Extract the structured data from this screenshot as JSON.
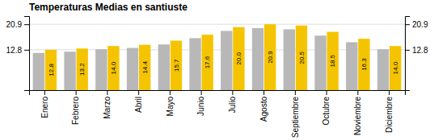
{
  "chart_data": {
    "type": "bar",
    "title": "Temperaturas Medias en santiuste",
    "categories": [
      "Enero",
      "Febrero",
      "Marzo",
      "Abril",
      "Mayo",
      "Junio",
      "Julio",
      "Agosto",
      "Septiembre",
      "Octubre",
      "Noviembre",
      "Diciembre"
    ],
    "series": [
      {
        "color": "#B8B8B8",
        "values": [
          11.8,
          12.2,
          13.0,
          13.4,
          14.5,
          16.5,
          18.8,
          19.7,
          19.3,
          17.3,
          15.2,
          13.0
        ]
      },
      {
        "color": "#F5C400",
        "values": [
          12.8,
          13.2,
          14.0,
          14.4,
          15.7,
          17.6,
          20.0,
          20.9,
          20.5,
          18.5,
          16.3,
          14.0
        ],
        "data_labels": true,
        "value_labels": [
          "12.8",
          "13.2",
          "14.0",
          "14.4",
          "15.7",
          "17.6",
          "20.0",
          "20.9",
          "20.5",
          "18.5",
          "16.3",
          "14.0"
        ]
      }
    ],
    "ylim": [
      0,
      23.5
    ],
    "yticks": [
      12.8,
      20.9
    ],
    "y2lim": [
      0,
      23.5
    ],
    "y2ticks": [
      12.8,
      20.9
    ],
    "grid": true
  }
}
